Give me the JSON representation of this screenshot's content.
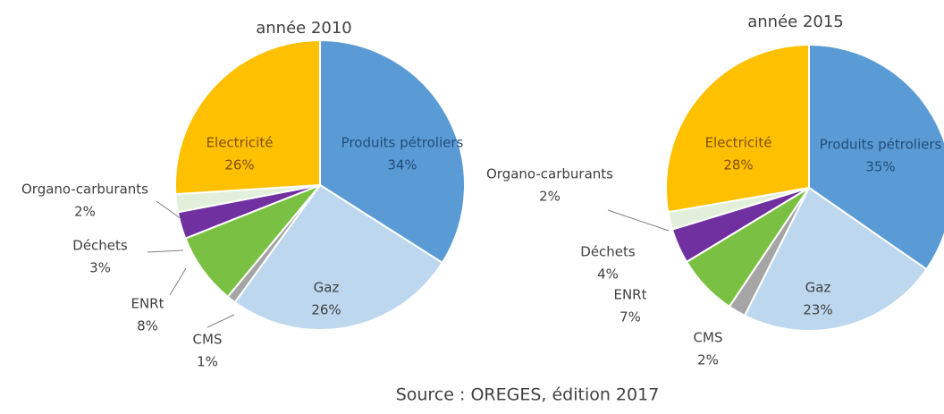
{
  "chart_data": [
    {
      "type": "pie",
      "title": "année 2010",
      "categories": [
        "Produits pétroliers",
        "Gaz",
        "CMS",
        "ENRt",
        "Déchets",
        "Organo-carburants",
        "Electricité"
      ],
      "values": [
        34,
        26,
        1,
        8,
        3,
        2,
        26
      ],
      "value_labels": [
        "34%",
        "26%",
        "1%",
        "8%",
        "3%",
        "2%",
        "26%"
      ],
      "colors": [
        "#5b9bd5",
        "#bdd7ee",
        "#a5a5a5",
        "#7ac143",
        "#7030a0",
        "#e2efda",
        "#ffc000"
      ]
    },
    {
      "type": "pie",
      "title": "année 2015",
      "categories": [
        "Produits pétroliers",
        "Gaz",
        "CMS",
        "ENRt",
        "Déchets",
        "Organo-carburants",
        "Electricité"
      ],
      "values": [
        35,
        23,
        2,
        7,
        4,
        2,
        28
      ],
      "value_labels": [
        "35%",
        "23%",
        "2%",
        "7%",
        "4%",
        "2%",
        "28%"
      ],
      "colors": [
        "#5b9bd5",
        "#bdd7ee",
        "#a5a5a5",
        "#7ac143",
        "#7030a0",
        "#e2efda",
        "#ffc000"
      ]
    }
  ],
  "source": "Source : OREGES, édition 2017"
}
